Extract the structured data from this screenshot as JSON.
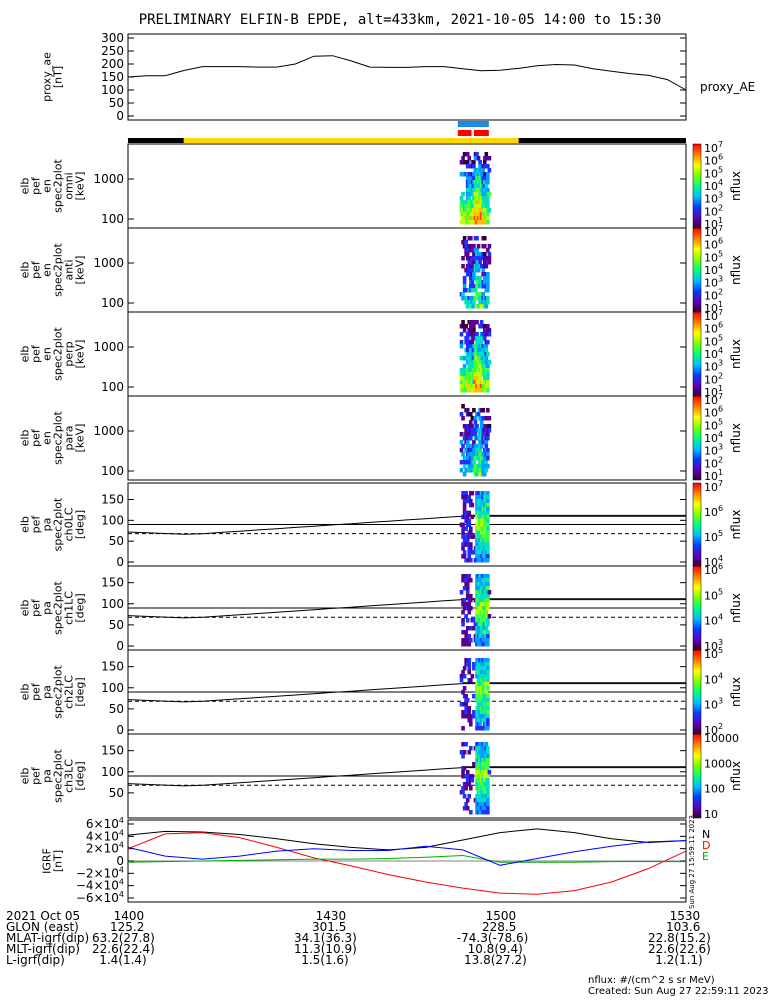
{
  "chart_data": {
    "type": "multi-panel spectrogram",
    "title": "PRELIMINARY ELFIN-B EPDE, alt=433km, 2021-10-05 14:00 to 15:30",
    "time_ticks": [
      "1400",
      "1430",
      "1500",
      "1530"
    ],
    "time_range": [
      "14:00",
      "15:30"
    ],
    "panels": [
      {
        "kind": "line",
        "ylabel": [
          "proxy_ae",
          "[nT]"
        ],
        "yticks": [
          "300",
          "250",
          "200",
          "150",
          "100",
          "50",
          "0"
        ],
        "ylim": [
          0,
          300
        ],
        "series": [
          {
            "name": "proxy_AE",
            "x": [
              0,
              3,
              6,
              9,
              12,
              15,
              18,
              21,
              24,
              27,
              30,
              33,
              36,
              39,
              42,
              45,
              48,
              51,
              54,
              57,
              60,
              63,
              66,
              69,
              72,
              75,
              78,
              81,
              84,
              87,
              90
            ],
            "y": [
              150,
              155,
              155,
              175,
              190,
              190,
              190,
              188,
              188,
              200,
              230,
              232,
              212,
              188,
              187,
              187,
              190,
              190,
              182,
              174,
              176,
              183,
              193,
              198,
              196,
              182,
              172,
              163,
              156,
              140,
              100
            ]
          }
        ]
      },
      {
        "kind": "bar-strip"
      },
      {
        "kind": "spectrogram",
        "ylabel": [
          "elb",
          "pef",
          "en",
          "spec2plot",
          "omni",
          "[keV]"
        ],
        "yticks": [
          "1000",
          "100"
        ],
        "zlabel": "nflux",
        "zticks": [
          "10^7",
          "10^6",
          "10^5",
          "10^4",
          "10^3",
          "10^2",
          "10^1"
        ]
      },
      {
        "kind": "spectrogram",
        "ylabel": [
          "elb",
          "pef",
          "en",
          "spec2plot",
          "anti",
          "[keV]"
        ],
        "yticks": [
          "1000",
          "100"
        ],
        "zlabel": "nflux",
        "zticks": [
          "10^7",
          "10^6",
          "10^5",
          "10^4",
          "10^3",
          "10^2",
          "10^1"
        ]
      },
      {
        "kind": "spectrogram",
        "ylabel": [
          "elb",
          "pef",
          "en",
          "spec2plot",
          "perp",
          "[keV]"
        ],
        "yticks": [
          "1000",
          "100"
        ],
        "zlabel": "nflux",
        "zticks": [
          "10^7",
          "10^6",
          "10^5",
          "10^4",
          "10^3",
          "10^2",
          "10^1"
        ]
      },
      {
        "kind": "spectrogram",
        "ylabel": [
          "elb",
          "pef",
          "en",
          "spec2plot",
          "para",
          "[keV]"
        ],
        "yticks": [
          "1000",
          "100"
        ],
        "zlabel": "nflux",
        "zticks": [
          "10^7",
          "10^6",
          "10^5",
          "10^4",
          "10^3",
          "10^2",
          "10^1"
        ]
      },
      {
        "kind": "pitch",
        "ylabel": [
          "elb",
          "pef",
          "pa",
          "spec2plot",
          "ch0LC",
          "[deg]"
        ],
        "yticks": [
          "150",
          "100",
          "50",
          "0"
        ],
        "zlabel": "nflux",
        "zticks": [
          "10^7",
          "10^6",
          "10^5",
          "10^4"
        ]
      },
      {
        "kind": "pitch",
        "ylabel": [
          "elb",
          "pef",
          "pa",
          "spec2plot",
          "ch1LC",
          "[deg]"
        ],
        "yticks": [
          "150",
          "100",
          "50",
          "0"
        ],
        "zlabel": "nflux",
        "zticks": [
          "10^6",
          "10^5",
          "10^4",
          "10^3"
        ]
      },
      {
        "kind": "pitch",
        "ylabel": [
          "elb",
          "pef",
          "pa",
          "spec2plot",
          "ch2LC",
          "[deg]"
        ],
        "yticks": [
          "150",
          "100",
          "50",
          "0"
        ],
        "zlabel": "nflux",
        "zticks": [
          "10^5",
          "10^4",
          "10^3",
          "10^2"
        ]
      },
      {
        "kind": "pitch",
        "ylabel": [
          "elb",
          "pef",
          "pa",
          "spec2plot",
          "ch3LC",
          "[deg]"
        ],
        "yticks": [
          "150",
          "100",
          "50"
        ],
        "zlabel": "nflux",
        "zticks": [
          "10000",
          "1000",
          "100",
          "10"
        ]
      },
      {
        "kind": "line",
        "ylabel": [
          "IGRF",
          "[nT]"
        ],
        "yticks": [
          "6×10^4",
          "4×10^4",
          "2×10^4",
          "0",
          "−2×10^4",
          "−4×10^4",
          "−6×10^4"
        ],
        "ylim": [
          -60000,
          60000
        ],
        "series": [
          {
            "name": "N",
            "color": "#000000",
            "x": [
              0,
              6,
              12,
              18,
              24,
              30,
              36,
              42,
              48,
              54,
              60,
              66,
              72,
              78,
              84,
              90
            ],
            "y": [
              42000,
              48000,
              47000,
              43000,
              36000,
              28000,
              22000,
              18000,
              22000,
              34000,
              46000,
              52000,
              46000,
              36000,
              30000,
              33000
            ]
          },
          {
            "name": "D",
            "color": "#ff0000",
            "x": [
              0,
              6,
              12,
              18,
              24,
              30,
              36,
              42,
              48,
              54,
              60,
              66,
              72,
              78,
              84,
              90
            ],
            "y": [
              20000,
              44000,
              46000,
              38000,
              22000,
              5000,
              -8000,
              -22000,
              -34000,
              -44000,
              -52000,
              -54000,
              -48000,
              -34000,
              -12000,
              16000
            ]
          },
          {
            "name": "E",
            "color": "#00b000",
            "x": [
              0,
              6,
              12,
              18,
              24,
              30,
              36,
              42,
              48,
              54,
              60,
              66,
              72,
              78,
              84,
              90
            ],
            "y": [
              -2000,
              -1000,
              0,
              1000,
              2000,
              3000,
              3000,
              4000,
              6000,
              9000,
              -2000,
              -2000,
              -2000,
              -1000,
              -1000,
              -1000
            ]
          },
          {
            "name": "",
            "color": "#0000ff",
            "x": [
              0,
              6,
              12,
              18,
              24,
              30,
              36,
              42,
              48,
              54,
              60,
              66,
              72,
              78,
              84,
              90
            ],
            "y": [
              22000,
              8000,
              3000,
              8000,
              16000,
              20000,
              17000,
              17000,
              24000,
              18000,
              -7000,
              4000,
              15000,
              24000,
              31000,
              33000
            ]
          }
        ],
        "legend": [
          "N",
          "D",
          "E"
        ]
      }
    ],
    "nflux_units": "nflux: #/(cm^2 s sr MeV)",
    "created": "Created: Sun Aug 27 22:59:11 2023",
    "side_stamp": "Sun Aug 27 15:59:11 2023"
  },
  "footer": {
    "rows": [
      {
        "label": "2021 Oct 05",
        "vals": [
          "1400",
          "1430",
          "1500",
          "1530"
        ]
      },
      {
        "label": "GLON (east)",
        "vals": [
          "125.2",
          "301.5",
          "228.5",
          "103.6"
        ]
      },
      {
        "label": "MLAT-igrf(dip)",
        "vals": [
          "63.2(27.8)",
          "34.1(36.3)",
          "-74.3(-78.6)",
          "22.8(15.2)"
        ]
      },
      {
        "label": "MLT-igrf(dip)",
        "vals": [
          "22.6(22.4)",
          "11.3(10.9)",
          "10.8(9.4)",
          "22.6(22.6)"
        ]
      },
      {
        "label": "L-igrf(dip)",
        "vals": [
          "1.4(1.4)",
          "1.5(1.6)",
          "13.8(27.2)",
          "1.2(1.1)"
        ]
      }
    ]
  }
}
